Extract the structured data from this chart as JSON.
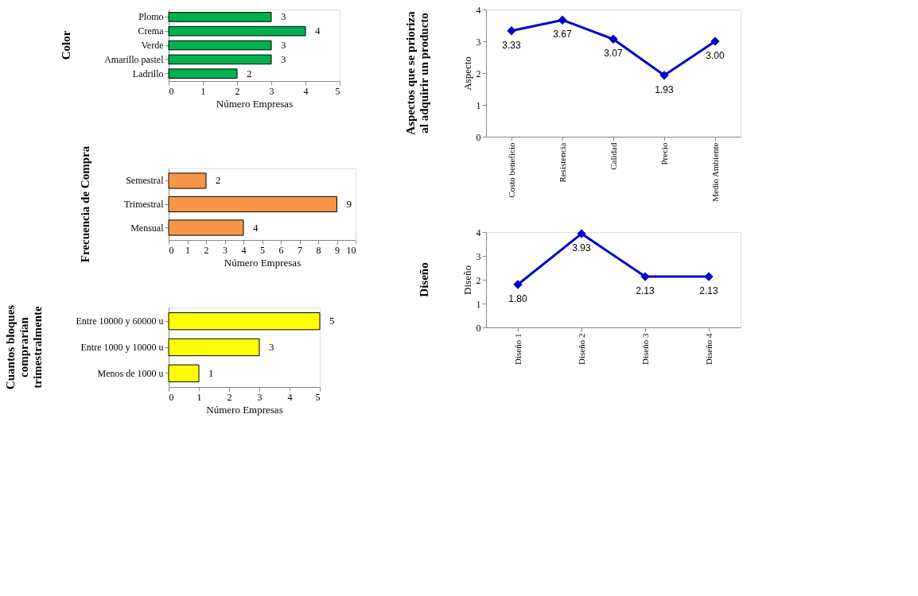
{
  "chart_data": [
    {
      "type": "bar",
      "orientation": "horizontal",
      "title": "Color",
      "xlabel": "Número Empresas",
      "categories": [
        "Plomo",
        "Crema",
        "Verde",
        "Amarillo pastel",
        "Ladrillo"
      ],
      "values": [
        3,
        4,
        3,
        3,
        2
      ],
      "color": "#00b050",
      "xlim": [
        0,
        5
      ],
      "xticks": [
        0,
        1,
        2,
        3,
        4,
        5
      ],
      "data_labels": true,
      "grid": false
    },
    {
      "type": "bar",
      "orientation": "horizontal",
      "title": "Frecuencia de Compra",
      "xlabel": "Número Empresas",
      "categories": [
        "Semestral",
        "Trimestral",
        "Mensual"
      ],
      "values": [
        2,
        9,
        4
      ],
      "color": "#f79646",
      "xlim": [
        0,
        10
      ],
      "xticks": [
        0,
        1,
        2,
        3,
        4,
        5,
        6,
        7,
        8,
        9,
        10
      ],
      "data_labels": true,
      "grid": false
    },
    {
      "type": "bar",
      "orientation": "horizontal",
      "title": "Cuantos bloques comprarían trimestralmente",
      "xlabel": "Número Empresas",
      "categories": [
        "Entre 10000 y 60000 u",
        "Entre 1000 y 10000 u",
        "Menos de 1000 u"
      ],
      "values": [
        5,
        3,
        1
      ],
      "color": "#ffff00",
      "xlim": [
        0,
        5
      ],
      "xticks": [
        0,
        1,
        2,
        3,
        4,
        5
      ],
      "data_labels": true,
      "grid": false
    },
    {
      "type": "line",
      "title": "Aspectos que se prioriza al adquirir un producto",
      "ylabel": "Aspecto",
      "categories": [
        "Costo beneficio",
        "Resistencia",
        "Calidad",
        "Precio",
        "Medio Ambiente"
      ],
      "values": [
        3.33,
        3.67,
        3.07,
        1.93,
        3.0
      ],
      "value_labels": [
        "3.33",
        "3.67",
        "3.07",
        "1.93",
        "3.00"
      ],
      "color": "#0000cc",
      "marker": "diamond",
      "line_style": "solid",
      "ylim": [
        0,
        4
      ],
      "yticks": [
        0,
        1,
        2,
        3,
        4
      ],
      "grid": false
    },
    {
      "type": "line",
      "title": "Diseño",
      "ylabel": "Diseño",
      "categories": [
        "Diseño 1",
        "Diseño 2",
        "Diseño 3",
        "Diseño 4"
      ],
      "values": [
        1.8,
        3.93,
        2.13,
        2.13
      ],
      "value_labels": [
        "1.80",
        "3.93",
        "2.13",
        "2.13"
      ],
      "color": "#0000cc",
      "marker": "diamond",
      "line_style": "solid",
      "ylim": [
        0,
        4
      ],
      "yticks": [
        0,
        1,
        2,
        3,
        4
      ],
      "grid": false
    }
  ]
}
